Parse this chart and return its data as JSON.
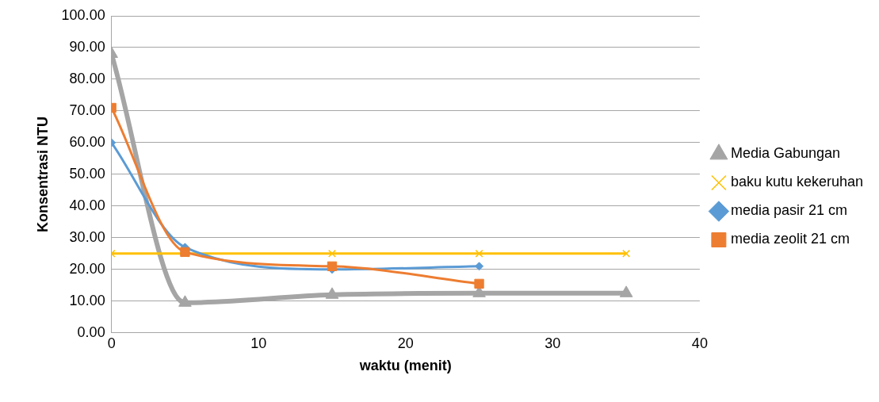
{
  "chart_data": {
    "type": "line",
    "xlabel": "waktu (menit)",
    "ylabel": "Konsentrasi NTU",
    "series": [
      {
        "name": "Media Gabungan",
        "color": "#a5a5a5",
        "marker": "triangle",
        "x": [
          0,
          5,
          15,
          25,
          35
        ],
        "values": [
          88,
          9.5,
          12,
          12.5,
          12.5
        ]
      },
      {
        "name": "baku kutu kekeruhan",
        "color": "#ffc000",
        "marker": "cross",
        "x": [
          0,
          5,
          15,
          25,
          35
        ],
        "values": [
          25,
          25,
          25,
          25,
          25
        ]
      },
      {
        "name": "media pasir 21 cm",
        "color": "#5b9bd5",
        "marker": "diamond",
        "x": [
          0,
          5,
          15,
          25
        ],
        "values": [
          60,
          27,
          20,
          21
        ]
      },
      {
        "name": "media zeolit 21 cm",
        "color": "#ed7d31",
        "marker": "square",
        "x": [
          0,
          5,
          15,
          25
        ],
        "values": [
          71,
          25.5,
          21,
          15.5
        ]
      }
    ],
    "xlim": [
      0,
      40
    ],
    "xticks": [
      0,
      10,
      20,
      30,
      40
    ],
    "ylim": [
      0,
      100
    ],
    "yticks": [
      {
        "value": 0,
        "label": "0.00"
      },
      {
        "value": 10,
        "label": "10.00"
      },
      {
        "value": 20,
        "label": "20.00"
      },
      {
        "value": 30,
        "label": "30.00"
      },
      {
        "value": 40,
        "label": "40.00"
      },
      {
        "value": 50,
        "label": "50.00"
      },
      {
        "value": 60,
        "label": "60.00"
      },
      {
        "value": 70,
        "label": "70.00"
      },
      {
        "value": 80,
        "label": "80.00"
      },
      {
        "value": 90,
        "label": "90.00"
      },
      {
        "value": 100,
        "label": "100.00"
      }
    ],
    "grid": "y",
    "legend": "right"
  }
}
